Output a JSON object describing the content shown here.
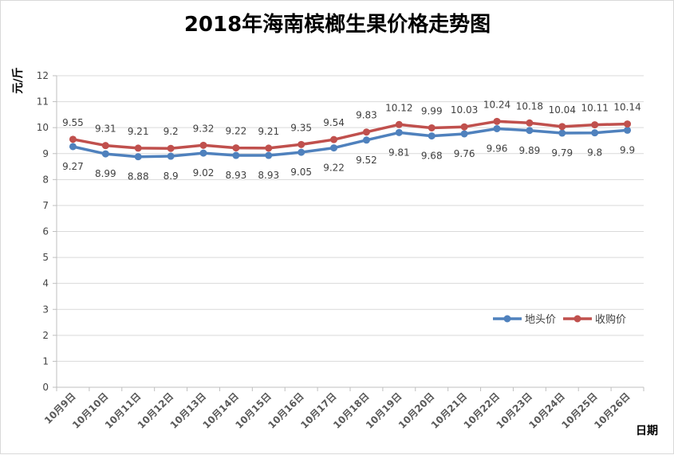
{
  "chart_data": {
    "type": "line",
    "title": "2018年海南槟榔生果价格走势图",
    "xlabel": "日期",
    "ylabel": "元/斤",
    "ylim": [
      0,
      12
    ],
    "yticks": [
      0,
      1,
      2,
      3,
      4,
      5,
      6,
      7,
      8,
      9,
      10,
      11,
      12
    ],
    "grid": true,
    "legend_position": "right-middle",
    "categories": [
      "10月9日",
      "10月10日",
      "10月11日",
      "10月12日",
      "10月13日",
      "10月14日",
      "10月15日",
      "10月16日",
      "10月17日",
      "10月18日",
      "10月19日",
      "10月20日",
      "10月21日",
      "10月22日",
      "10月23日",
      "10月24日",
      "10月25日",
      "10月26日"
    ],
    "series": [
      {
        "name": "地头价",
        "color": "#4f81bd",
        "values": [
          9.27,
          8.99,
          8.88,
          8.9,
          9.02,
          8.93,
          8.93,
          9.05,
          9.22,
          9.52,
          9.81,
          9.68,
          9.76,
          9.96,
          9.89,
          9.79,
          9.8,
          9.9
        ],
        "labels": [
          "9.27",
          "8.99",
          "8.88",
          "8.9",
          "9.02",
          "8.93",
          "8.93",
          "9.05",
          "9.22",
          "9.52",
          "9.81",
          "9.68",
          "9.76",
          "9.96",
          "9.89",
          "9.79",
          "9.8",
          "9.9"
        ],
        "label_position": "below"
      },
      {
        "name": "收购价",
        "color": "#c0504d",
        "values": [
          9.55,
          9.31,
          9.21,
          9.2,
          9.32,
          9.22,
          9.21,
          9.35,
          9.54,
          9.83,
          10.12,
          9.99,
          10.03,
          10.24,
          10.18,
          10.04,
          10.11,
          10.14
        ],
        "labels": [
          "9.55",
          "9.31",
          "9.21",
          "9.2",
          "9.32",
          "9.22",
          "9.21",
          "9.35",
          "9.54",
          "9.83",
          "10.12",
          "9.99",
          "10.03",
          "10.24",
          "10.18",
          "10.04",
          "10.11",
          "10.14"
        ],
        "label_position": "above"
      }
    ]
  }
}
